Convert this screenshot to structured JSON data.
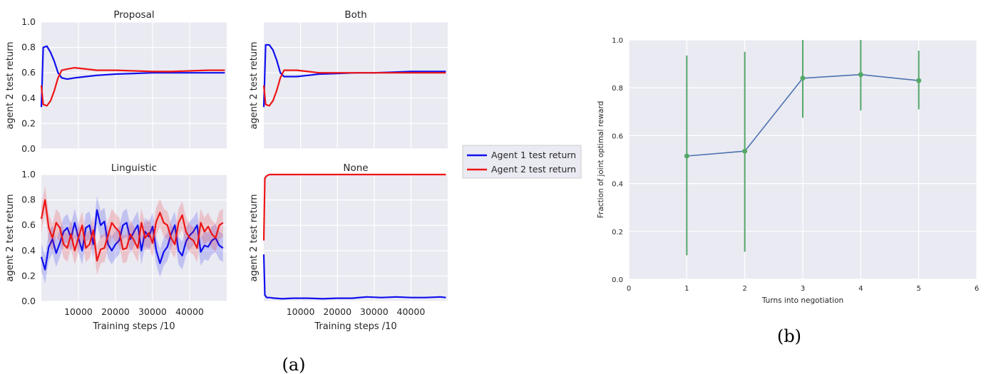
{
  "figure": {
    "caption_a": "(a)",
    "caption_b": "(b)"
  },
  "legend": {
    "agent1": "Agent 1 test return",
    "agent2": "Agent 2 test return",
    "colors": {
      "agent1": "#1010ee",
      "agent2": "#ee1515",
      "panel_bg": "#eaeaf2",
      "series_b": "#4c72b0",
      "errorbar_b": "#55a868"
    }
  },
  "chart_data": [
    {
      "type": "line",
      "title": "Proposal",
      "ylabel": "agent 2 test return",
      "xlabel": "",
      "xlim": [
        0,
        50000
      ],
      "ylim": [
        0,
        1.0
      ],
      "yticks": [
        "0.0",
        "0.2",
        "0.4",
        "0.6",
        "0.8",
        "1.0"
      ],
      "xticks": [],
      "grid": true,
      "series": [
        {
          "name": "Agent 1 test return",
          "color": "#1010ee",
          "x": [
            0,
            500,
            1500,
            2500,
            3500,
            4500,
            5500,
            7000,
            9000,
            12000,
            15000,
            20000,
            25000,
            30000,
            35000,
            40000,
            45000,
            49500
          ],
          "y": [
            0.33,
            0.8,
            0.81,
            0.76,
            0.69,
            0.6,
            0.56,
            0.55,
            0.56,
            0.57,
            0.58,
            0.59,
            0.595,
            0.6,
            0.6,
            0.6,
            0.6,
            0.6
          ]
        },
        {
          "name": "Agent 2 test return",
          "color": "#ee1515",
          "x": [
            0,
            500,
            1500,
            2500,
            3500,
            4500,
            5500,
            7000,
            9000,
            12000,
            15000,
            20000,
            25000,
            30000,
            35000,
            40000,
            45000,
            49500
          ],
          "y": [
            0.5,
            0.35,
            0.34,
            0.38,
            0.46,
            0.56,
            0.62,
            0.63,
            0.64,
            0.63,
            0.62,
            0.62,
            0.615,
            0.61,
            0.61,
            0.615,
            0.62,
            0.62
          ]
        }
      ]
    },
    {
      "type": "line",
      "title": "Both",
      "ylabel": "agent 2 test return",
      "xlabel": "",
      "xlim": [
        0,
        50000
      ],
      "ylim": [
        0,
        1.0
      ],
      "yticks": [],
      "xticks": [],
      "grid": true,
      "series": [
        {
          "name": "Agent 1 test return",
          "color": "#1010ee",
          "x": [
            0,
            500,
            1500,
            2500,
            3500,
            4500,
            5500,
            7000,
            9000,
            12000,
            15000,
            20000,
            25000,
            30000,
            35000,
            40000,
            45000,
            49500
          ],
          "y": [
            0.33,
            0.82,
            0.82,
            0.78,
            0.7,
            0.6,
            0.57,
            0.57,
            0.57,
            0.58,
            0.59,
            0.595,
            0.6,
            0.6,
            0.605,
            0.61,
            0.61,
            0.61
          ]
        },
        {
          "name": "Agent 2 test return",
          "color": "#ee1515",
          "x": [
            0,
            500,
            1500,
            2500,
            3500,
            4500,
            5500,
            7000,
            9000,
            12000,
            15000,
            20000,
            25000,
            30000,
            35000,
            40000,
            45000,
            49500
          ],
          "y": [
            0.5,
            0.35,
            0.34,
            0.38,
            0.46,
            0.56,
            0.62,
            0.62,
            0.62,
            0.61,
            0.6,
            0.6,
            0.6,
            0.6,
            0.6,
            0.6,
            0.6,
            0.6
          ]
        }
      ]
    },
    {
      "type": "line",
      "title": "Linguistic",
      "ylabel": "agent 2 test return",
      "xlabel": "Training steps /10",
      "xlim": [
        0,
        50000
      ],
      "ylim": [
        0,
        1.0
      ],
      "yticks": [
        "0.0",
        "0.2",
        "0.4",
        "0.6",
        "0.8",
        "1.0"
      ],
      "xticks": [
        "10000",
        "20000",
        "30000",
        "40000"
      ],
      "xtick_values": [
        10000,
        20000,
        30000,
        40000
      ],
      "grid": true,
      "shaded": true,
      "series": [
        {
          "name": "Agent 1 test return",
          "color": "#1010ee",
          "x": [
            0,
            1000,
            2000,
            3000,
            4000,
            5000,
            6000,
            7000,
            8000,
            9000,
            10000,
            11000,
            12000,
            13000,
            14000,
            15000,
            16000,
            17000,
            18000,
            19000,
            20000,
            21000,
            22000,
            23000,
            24000,
            25000,
            26000,
            27000,
            28000,
            29000,
            30000,
            31000,
            32000,
            33000,
            34000,
            35000,
            36000,
            37000,
            38000,
            39000,
            40000,
            41000,
            42000,
            43000,
            44000,
            45000,
            46000,
            47000,
            48000,
            49000
          ],
          "y": [
            0.35,
            0.25,
            0.43,
            0.49,
            0.38,
            0.46,
            0.55,
            0.58,
            0.5,
            0.62,
            0.5,
            0.4,
            0.58,
            0.6,
            0.45,
            0.72,
            0.6,
            0.63,
            0.45,
            0.4,
            0.45,
            0.48,
            0.6,
            0.62,
            0.49,
            0.55,
            0.6,
            0.4,
            0.55,
            0.51,
            0.59,
            0.4,
            0.3,
            0.39,
            0.43,
            0.53,
            0.6,
            0.4,
            0.36,
            0.47,
            0.52,
            0.55,
            0.6,
            0.39,
            0.44,
            0.43,
            0.48,
            0.5,
            0.44,
            0.42
          ]
        },
        {
          "name": "Agent 2 test return",
          "color": "#ee1515",
          "x": [
            0,
            1000,
            2000,
            3000,
            4000,
            5000,
            6000,
            7000,
            8000,
            9000,
            10000,
            11000,
            12000,
            13000,
            14000,
            15000,
            16000,
            17000,
            18000,
            19000,
            20000,
            21000,
            22000,
            23000,
            24000,
            25000,
            26000,
            27000,
            28000,
            29000,
            30000,
            31000,
            32000,
            33000,
            34000,
            35000,
            36000,
            37000,
            38000,
            39000,
            40000,
            41000,
            42000,
            43000,
            44000,
            45000,
            46000,
            47000,
            48000,
            49000
          ],
          "y": [
            0.65,
            0.8,
            0.58,
            0.5,
            0.62,
            0.58,
            0.45,
            0.42,
            0.53,
            0.4,
            0.5,
            0.6,
            0.42,
            0.45,
            0.56,
            0.32,
            0.41,
            0.42,
            0.52,
            0.62,
            0.58,
            0.55,
            0.41,
            0.42,
            0.53,
            0.48,
            0.42,
            0.62,
            0.5,
            0.54,
            0.46,
            0.63,
            0.7,
            0.62,
            0.6,
            0.5,
            0.45,
            0.62,
            0.68,
            0.55,
            0.5,
            0.48,
            0.42,
            0.62,
            0.55,
            0.59,
            0.53,
            0.5,
            0.6,
            0.62
          ]
        }
      ]
    },
    {
      "type": "line",
      "title": "None",
      "ylabel": "agent 2 test return",
      "xlabel": "Training steps /10",
      "xlim": [
        0,
        50000
      ],
      "ylim": [
        0,
        1.0
      ],
      "yticks": [],
      "xticks": [
        "10000",
        "20000",
        "30000",
        "40000"
      ],
      "xtick_values": [
        10000,
        20000,
        30000,
        40000
      ],
      "grid": true,
      "series": [
        {
          "name": "Agent 1 test return",
          "color": "#1010ee",
          "x": [
            0,
            300,
            800,
            1500,
            3000,
            5000,
            8000,
            12000,
            16000,
            20000,
            24000,
            28000,
            32000,
            36000,
            40000,
            44000,
            48000,
            49500
          ],
          "y": [
            0.37,
            0.05,
            0.03,
            0.03,
            0.025,
            0.02,
            0.025,
            0.025,
            0.02,
            0.025,
            0.025,
            0.035,
            0.03,
            0.035,
            0.03,
            0.03,
            0.035,
            0.03
          ]
        },
        {
          "name": "Agent 2 test return",
          "color": "#ee1515",
          "x": [
            0,
            300,
            800,
            1500,
            3000,
            49500
          ],
          "y": [
            0.48,
            0.97,
            0.99,
            1.0,
            1.0,
            1.0
          ]
        }
      ]
    },
    {
      "type": "line",
      "title": "",
      "xlabel": "Turns into negotiation",
      "ylabel": "Fraction of joint optimal reward",
      "xlim": [
        0,
        6
      ],
      "ylim": [
        0,
        1.0
      ],
      "xticks": [
        "0",
        "1",
        "2",
        "3",
        "4",
        "5",
        "6"
      ],
      "yticks": [
        "0.0",
        "0.2",
        "0.4",
        "0.6",
        "0.8",
        "1.0"
      ],
      "grid": true,
      "series": [
        {
          "x": [
            1,
            2,
            3,
            4,
            5
          ],
          "y": [
            0.515,
            0.535,
            0.84,
            0.855,
            0.83
          ],
          "yerr_low": [
            0.1,
            0.115,
            0.675,
            0.705,
            0.71
          ],
          "yerr_high": [
            0.935,
            0.95,
            1.0,
            1.0,
            0.955
          ]
        }
      ]
    }
  ]
}
